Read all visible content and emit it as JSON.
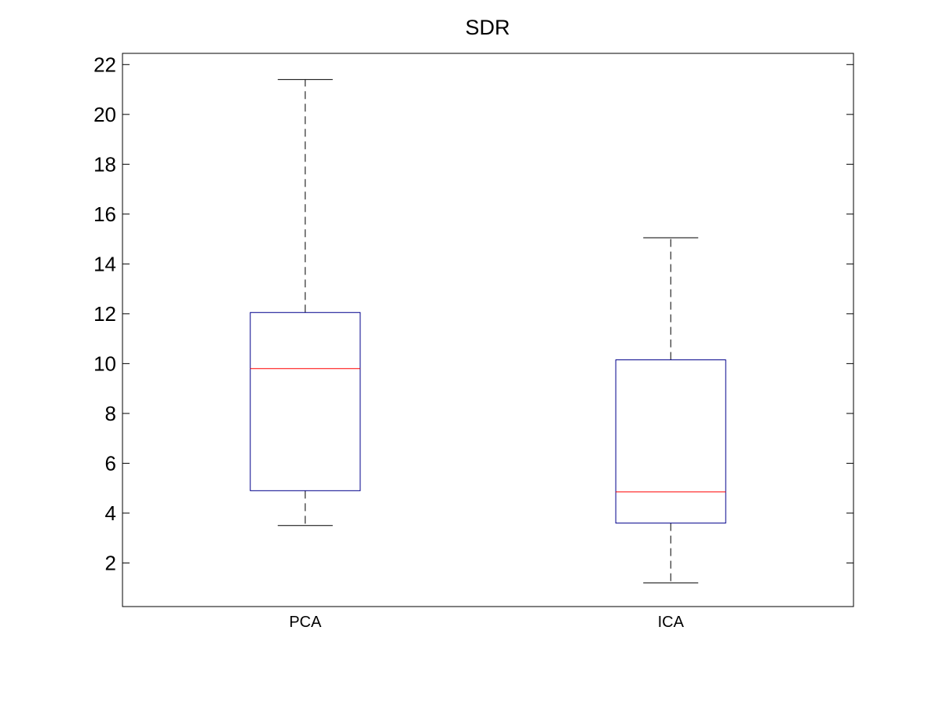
{
  "chart_data": {
    "type": "box",
    "title": "SDR",
    "xlabel": "",
    "ylabel": "",
    "categories": [
      "PCA",
      "ICA"
    ],
    "boxes": [
      {
        "name": "PCA",
        "whisker_low": 3.5,
        "q1": 4.9,
        "median": 9.8,
        "q3": 12.05,
        "whisker_high": 21.4
      },
      {
        "name": "ICA",
        "whisker_low": 1.2,
        "q1": 3.6,
        "median": 4.85,
        "q3": 10.15,
        "whisker_high": 15.05
      }
    ],
    "ylim": [
      0.25,
      22.45
    ],
    "yticks": [
      2,
      4,
      6,
      8,
      10,
      12,
      14,
      16,
      18,
      20,
      22
    ],
    "grid": false,
    "legend": "none",
    "colors": {
      "box": "#00008B",
      "median": "#FF0000",
      "whisker": "#000000",
      "axis": "#000000"
    }
  }
}
